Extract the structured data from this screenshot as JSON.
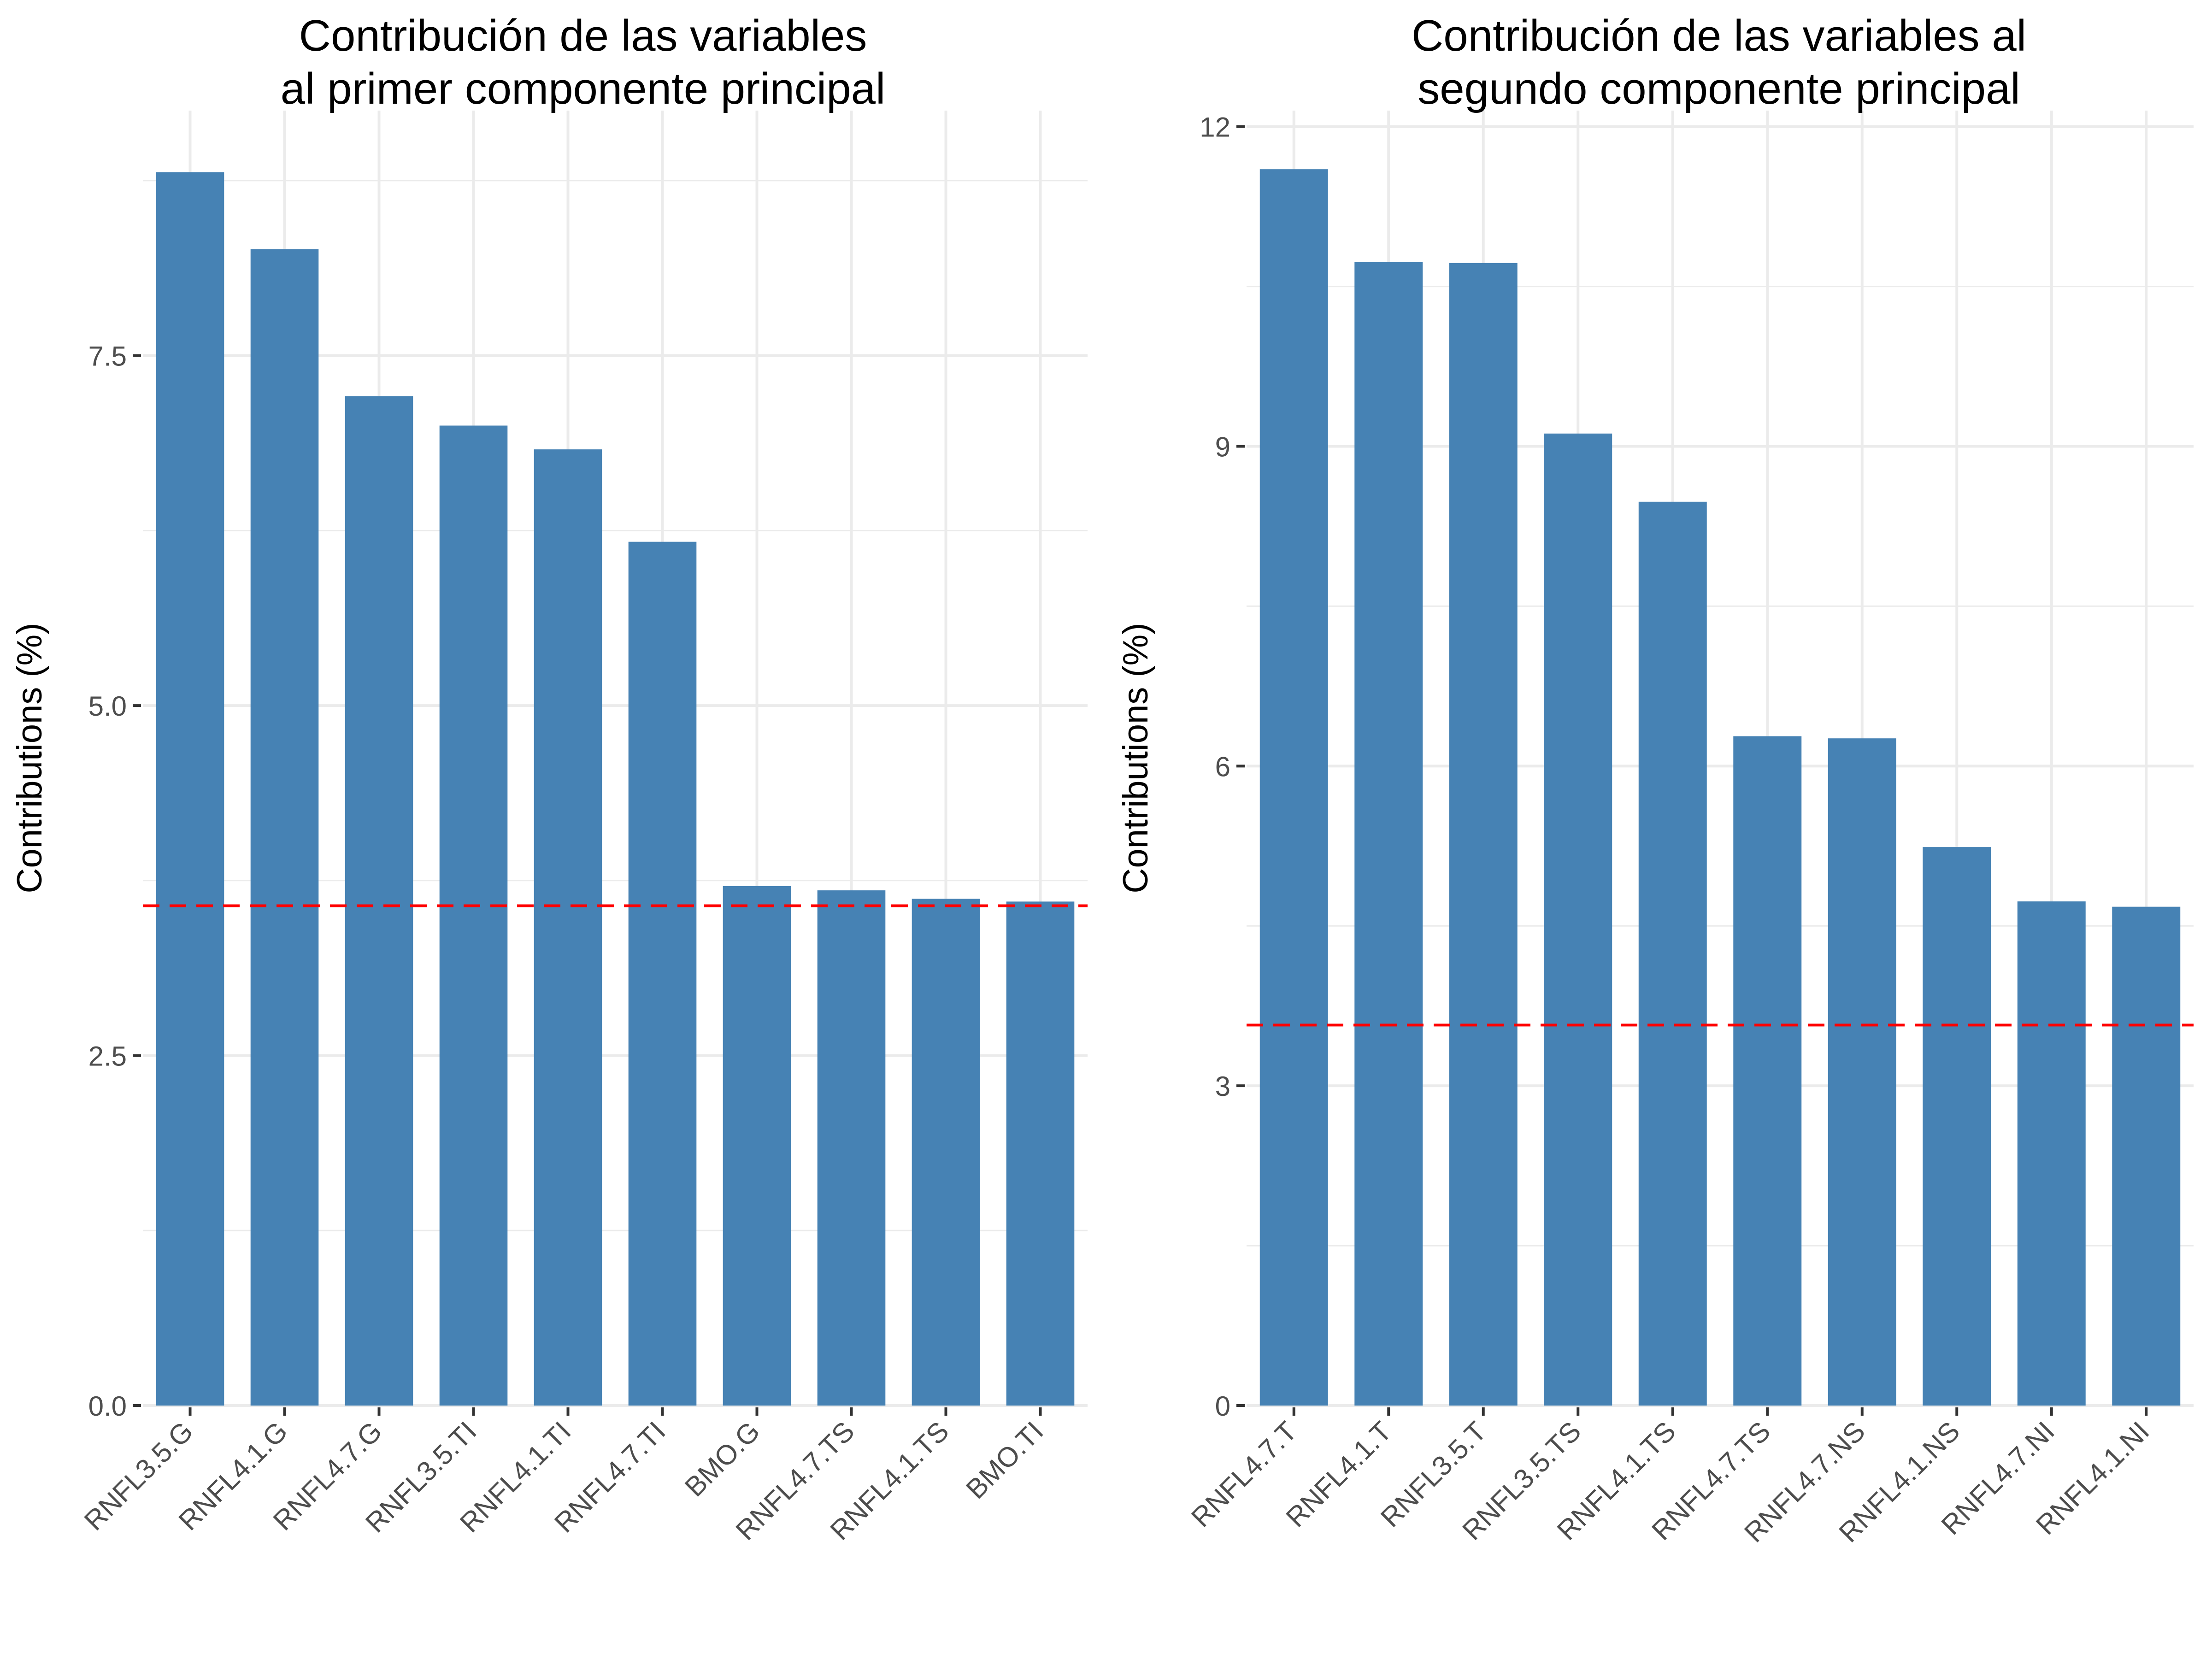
{
  "chart_data": [
    {
      "type": "bar",
      "title_lines": [
        "Contribución de las variables",
        "al primer componente principal"
      ],
      "xlabel": "",
      "ylabel": "Contributions (%)",
      "categories": [
        "RNFL3.5.G",
        "RNFL4.1.G",
        "RNFL4.7.G",
        "RNFL3.5.TI",
        "RNFL4.1.TI",
        "RNFL4.7.TI",
        "BMO.G",
        "RNFL4.7.TS",
        "RNFL4.1.TS",
        "BMO.TI"
      ],
      "values": [
        8.81,
        8.26,
        7.21,
        7.0,
        6.83,
        6.17,
        3.71,
        3.68,
        3.62,
        3.6
      ],
      "yticks": [
        0.0,
        2.5,
        5.0,
        7.5
      ],
      "ytick_labels": [
        "0.0",
        "2.5",
        "5.0",
        "7.5"
      ],
      "ylim": [
        0,
        9.25
      ],
      "reference_line": 3.57,
      "grid": true,
      "bar_color": "#4682b4",
      "line_color": "#ff0000"
    },
    {
      "type": "bar",
      "title_lines": [
        "Contribución de las variables al",
        "segundo componente principal"
      ],
      "xlabel": "",
      "ylabel": "Contributions (%)",
      "categories": [
        "RNFL4.7.T",
        "RNFL4.1.T",
        "RNFL3.5.T",
        "RNFL3.5.TS",
        "RNFL4.1.TS",
        "RNFL4.7.TS",
        "RNFL4.7.NS",
        "RNFL4.1.NS",
        "RNFL4.7.NI",
        "RNFL4.1.NI"
      ],
      "values": [
        11.6,
        10.73,
        10.72,
        9.12,
        8.48,
        6.28,
        6.26,
        5.24,
        4.73,
        4.68
      ],
      "yticks": [
        0,
        3,
        6,
        9,
        12
      ],
      "ytick_labels": [
        "0",
        "3",
        "6",
        "9",
        "12"
      ],
      "ylim": [
        0,
        12.15
      ],
      "reference_line": 3.57,
      "grid": true,
      "bar_color": "#4682b4",
      "line_color": "#ff0000"
    }
  ]
}
